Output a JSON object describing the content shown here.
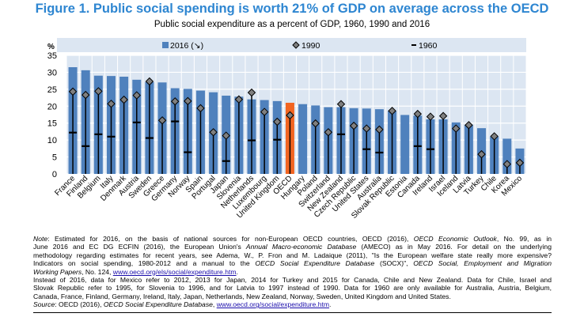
{
  "title": "Figure 1. Public social spending is worth 21% of GDP on average across the OECD",
  "subtitle": "Public social expenditure as a percent of GDP, 1960, 1990 and 2016",
  "colors": {
    "bar": "#4f81bd",
    "highlight": "#f26522",
    "plot_bg": "#dce6f2",
    "marker": "#7f7f7f",
    "title": "#2e86d1"
  },
  "chart_data": {
    "type": "bar",
    "ylabel": "%",
    "ylim": [
      0,
      35
    ],
    "yticks": [
      0,
      5,
      10,
      15,
      20,
      25,
      30,
      35
    ],
    "grid": true,
    "legend_position": "top",
    "highlight_category": "OECD",
    "categories": [
      "France",
      "Finland",
      "Belgium",
      "Italy",
      "Denmark",
      "Austria",
      "Sweden",
      "Greece",
      "Germany",
      "Norway",
      "Spain",
      "Portugal",
      "Japan",
      "Slovenia",
      "Netherlands",
      "Luxembourg",
      "United Kingdom",
      "OECD",
      "Hungary",
      "Poland",
      "Switzerland",
      "New Zealand",
      "Czech Republic",
      "United States",
      "Australia",
      "Slovak Republic",
      "Estonia",
      "Canada",
      "Ireland",
      "Israel",
      "Iceland",
      "Latvia",
      "Turkey",
      "Chile",
      "Korea",
      "Mexico"
    ],
    "series": [
      {
        "name": "2016 (↘)",
        "type": "bar",
        "values": [
          31.5,
          30.6,
          29.0,
          28.9,
          28.7,
          27.8,
          27.1,
          27.0,
          25.3,
          25.1,
          24.6,
          24.1,
          23.1,
          22.8,
          22.0,
          21.8,
          21.5,
          21.0,
          20.6,
          20.2,
          19.7,
          19.7,
          19.4,
          19.3,
          19.1,
          18.6,
          17.4,
          17.2,
          16.1,
          16.1,
          15.2,
          14.5,
          13.5,
          11.0,
          10.4,
          7.5
        ]
      },
      {
        "name": "1990",
        "type": "diamond",
        "values": [
          24.3,
          23.3,
          24.4,
          20.7,
          21.9,
          23.2,
          27.3,
          15.8,
          21.4,
          21.5,
          19.4,
          12.3,
          11.3,
          22.0,
          24.0,
          18.3,
          15.4,
          17.3,
          null,
          14.9,
          12.3,
          20.6,
          14.2,
          13.4,
          13.1,
          18.6,
          null,
          17.7,
          16.9,
          17.1,
          13.4,
          14.4,
          5.8,
          11.1,
          2.9,
          3.3
        ]
      },
      {
        "name": "1960",
        "type": "dash",
        "values": [
          12.2,
          8.2,
          11.7,
          11.0,
          null,
          15.2,
          10.6,
          null,
          15.5,
          6.4,
          null,
          null,
          3.8,
          null,
          9.9,
          null,
          10.1,
          null,
          null,
          null,
          null,
          11.7,
          null,
          7.3,
          6.3,
          null,
          null,
          8.2,
          7.3,
          null,
          null,
          null,
          null,
          null,
          null,
          null
        ]
      }
    ]
  },
  "notes": {
    "lines": [
      [
        {
          "t": "Note",
          "c": "it"
        },
        {
          "t": ": Estimated for 2016, on the basis of national sources for non-European OECD countries, OECD (2016), "
        },
        {
          "t": "OECD Economic Outlook",
          "c": "it"
        },
        {
          "t": ", No. 99, as in"
        }
      ],
      [
        {
          "t": "June 2016 and EC DG ECFIN (2016), the European Union's "
        },
        {
          "t": "Annual Macro-economic Database",
          "c": "it"
        },
        {
          "t": " (AMECO) as in May 2016. For detail on the underlying"
        }
      ],
      [
        {
          "t": "methodology regarding estimates for recent years, see Adema, W., P. Fron and M. Ladaique (2011), \"Is the European welfare state really more expensive?"
        }
      ],
      [
        {
          "t": "Indicators on social spending, 1980-2012 and a manual to the "
        },
        {
          "t": "OECD Social Expenditure Database",
          "c": "it"
        },
        {
          "t": " (SOCX)\", "
        },
        {
          "t": "OECD Social, Employment and Migration",
          "c": "it"
        }
      ],
      [
        {
          "t": "Working Papers",
          "c": "it"
        },
        {
          "t": ", No. 124, "
        },
        {
          "t": "www.oecd.org/els/social/expenditure.htm",
          "c": "lk"
        },
        {
          "t": "."
        }
      ],
      [
        {
          "t": "Instead of 2016, data for Mexico refer to 2012, 2013 for Japan, 2014 for Turkey and 2015 for Canada, Chile and New Zealand. Data for Chile, Israel and"
        }
      ],
      [
        {
          "t": "Slovak Republic refer to 1995, for Slovenia to 1996, and for Latvia to 1997 instead of 1990. Data for 1960 are only available for Australia, Austria, Belgium,"
        }
      ],
      [
        {
          "t": "Canada, France, Finland, Germany, Ireland, Italy, Japan, Netherlands, New Zealand, Norway, Sweden, United Kingdom and United States."
        }
      ],
      [
        {
          "t": "Source",
          "c": "it"
        },
        {
          "t": ": OECD (2016), "
        },
        {
          "t": "OECD Social Expenditure Database",
          "c": "it"
        },
        {
          "t": ", "
        },
        {
          "t": "www.oecd.org/social/expenditure.htm",
          "c": "lk"
        },
        {
          "t": "."
        }
      ]
    ]
  }
}
